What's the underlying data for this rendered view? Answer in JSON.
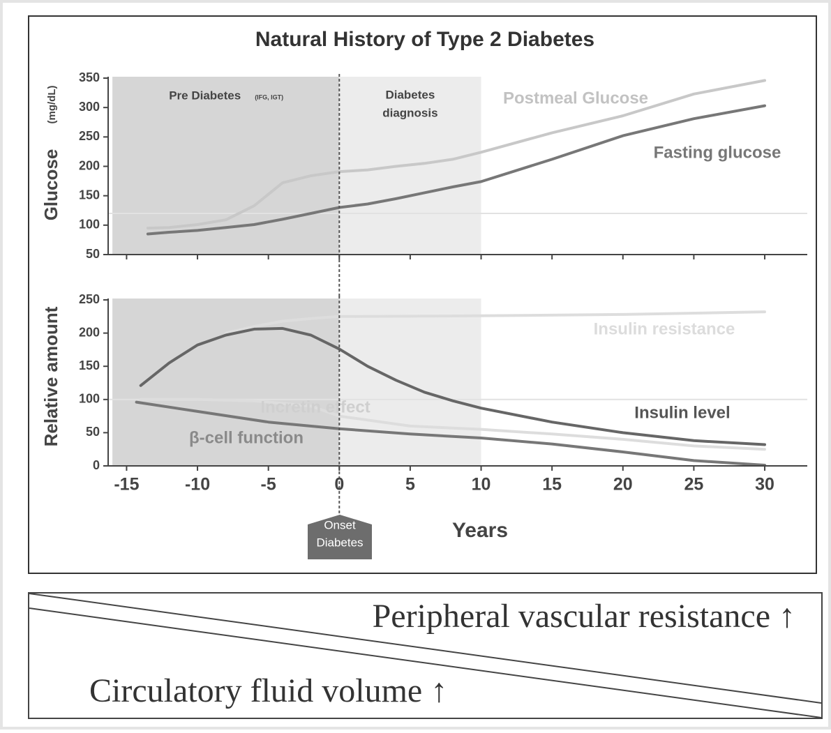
{
  "title": "Natural History of Type 2 Diabetes",
  "onset_label": [
    "Onset",
    "Diabetes"
  ],
  "chart_data": [
    {
      "type": "line",
      "ylabel": "Glucose",
      "yunit": "(mg/dL)",
      "xlim": [
        -16.3,
        33
      ],
      "xticks": [
        -15,
        -10,
        -5,
        0,
        5,
        10,
        15,
        20,
        25,
        30
      ],
      "ylim": [
        50,
        350
      ],
      "yticks": [
        50,
        100,
        150,
        200,
        250,
        300,
        350
      ],
      "reference_line": 120,
      "regions": [
        {
          "label": "Pre Diabetes",
          "sublabel": "(IFG, IGT)",
          "from": -16,
          "to": 0
        },
        {
          "label": [
            "Diabetes",
            "diagnosis"
          ],
          "from": 0,
          "to": 10
        }
      ],
      "series": [
        {
          "name": "Postmeal Glucose",
          "color": "#c8c8c8",
          "x": [
            -13.5,
            -12,
            -10,
            -8,
            -6,
            -4,
            -2,
            0,
            2,
            4,
            6,
            8,
            10,
            15,
            20,
            25,
            30
          ],
          "values": [
            95,
            96,
            101,
            109,
            133,
            172,
            184,
            191,
            194,
            200,
            205,
            212,
            224,
            257,
            286,
            323,
            346
          ]
        },
        {
          "name": "Fasting glucose",
          "color": "#777777",
          "x": [
            -13.5,
            -12,
            -10,
            -8,
            -6,
            -4,
            -2,
            0,
            2,
            4,
            6,
            8,
            10,
            15,
            20,
            25,
            30
          ],
          "values": [
            85,
            88,
            91,
            96,
            101,
            110,
            120,
            130,
            136,
            145,
            155,
            165,
            174,
            212,
            252,
            281,
            303
          ]
        }
      ]
    },
    {
      "type": "line",
      "ylabel": "Relative amount",
      "xlabel": "Years",
      "xlim": [
        -16.3,
        33
      ],
      "xticks": [
        -15,
        -10,
        -5,
        0,
        5,
        10,
        15,
        20,
        25,
        30
      ],
      "ylim": [
        0,
        250
      ],
      "yticks": [
        0,
        50,
        100,
        150,
        200,
        250
      ],
      "reference_line": 100,
      "regions": [
        {
          "from": -16,
          "to": 0
        },
        {
          "from": 0,
          "to": 10
        }
      ],
      "series": [
        {
          "name": "Insulin resistance",
          "color": "#dddddd",
          "x": [
            -8,
            -6,
            -4,
            -2,
            0,
            10,
            20,
            30
          ],
          "values": [
            200,
            210,
            218,
            222,
            225,
            226,
            228,
            232
          ]
        },
        {
          "name": "Insulin level",
          "color": "#666666",
          "x": [
            -14,
            -12,
            -10,
            -8,
            -6,
            -4,
            -2,
            0,
            2,
            4,
            6,
            8,
            10,
            15,
            20,
            25,
            30
          ],
          "values": [
            121,
            155,
            182,
            197,
            206,
            207,
            197,
            176,
            150,
            129,
            111,
            98,
            87,
            66,
            50,
            38,
            32
          ]
        },
        {
          "name": "Incretin effect",
          "color": "#dddddd",
          "x": [
            -14,
            -10,
            -6,
            -2,
            0,
            5,
            10,
            15,
            20,
            25,
            30
          ],
          "values": [
            100,
            100,
            98,
            90,
            75,
            60,
            55,
            48,
            40,
            30,
            25
          ]
        },
        {
          "name": "β-cell function",
          "color": "#777777",
          "x": [
            -14.3,
            -10,
            -5,
            0,
            5,
            10,
            15,
            20,
            25,
            30
          ],
          "values": [
            96,
            82,
            66,
            56,
            48,
            42,
            33,
            21,
            8,
            1
          ]
        }
      ]
    }
  ],
  "bottom_panel": {
    "upper": "Peripheral vascular resistance ↑",
    "lower": "Circulatory fluid volume ↑"
  }
}
